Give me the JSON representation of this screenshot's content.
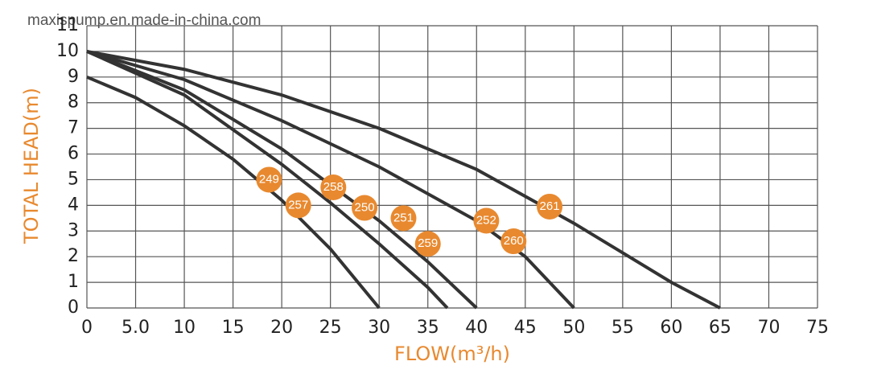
{
  "chart_data": {
    "type": "line",
    "watermark": "maxispump.en.made-in-china.com",
    "x_label": "FLOW(m³/h)",
    "y_label": "TOTAL HEAD(m)",
    "xlim": [
      0,
      75
    ],
    "ylim": [
      0,
      11
    ],
    "xticks": [
      0,
      {
        "value": 5,
        "label": "5.0"
      },
      10,
      15,
      20,
      25,
      30,
      35,
      40,
      45,
      50,
      55,
      60,
      65,
      70,
      75
    ],
    "yticks": [
      0,
      1,
      2,
      3,
      4,
      5,
      6,
      7,
      8,
      9,
      10,
      11
    ],
    "grid": true,
    "line_color": "#333333",
    "badge_color": "#e8892f",
    "series": [
      {
        "x": [
          0,
          5,
          10,
          15,
          20,
          25,
          30
        ],
        "values": [
          9,
          8.2,
          7.1,
          5.8,
          4.2,
          2.3,
          0
        ]
      },
      {
        "x": [
          0,
          10,
          20,
          25,
          30,
          35,
          37
        ],
        "values": [
          10,
          8.3,
          5.6,
          4.1,
          2.5,
          0.8,
          0
        ]
      },
      {
        "x": [
          0,
          10,
          20,
          30,
          35,
          40
        ],
        "values": [
          10,
          8.5,
          6.2,
          3.4,
          1.8,
          0
        ]
      },
      {
        "x": [
          0,
          10,
          20,
          30,
          40,
          45,
          50
        ],
        "values": [
          10,
          8.9,
          7.3,
          5.5,
          3.4,
          2.0,
          0
        ]
      },
      {
        "x": [
          0,
          10,
          20,
          30,
          40,
          50,
          60,
          65
        ],
        "values": [
          10,
          9.3,
          8.3,
          7.0,
          5.4,
          3.3,
          1.0,
          0
        ]
      }
    ],
    "labels": [
      {
        "text": "249",
        "x": 18.7,
        "y": 5.0
      },
      {
        "text": "257",
        "x": 21.7,
        "y": 4.0
      },
      {
        "text": "258",
        "x": 25.3,
        "y": 4.7
      },
      {
        "text": "250",
        "x": 28.5,
        "y": 3.9
      },
      {
        "text": "251",
        "x": 32.5,
        "y": 3.5
      },
      {
        "text": "259",
        "x": 35.0,
        "y": 2.5
      },
      {
        "text": "252",
        "x": 41.0,
        "y": 3.4
      },
      {
        "text": "260",
        "x": 43.8,
        "y": 2.6
      },
      {
        "text": "261",
        "x": 47.5,
        "y": 3.95
      }
    ]
  }
}
